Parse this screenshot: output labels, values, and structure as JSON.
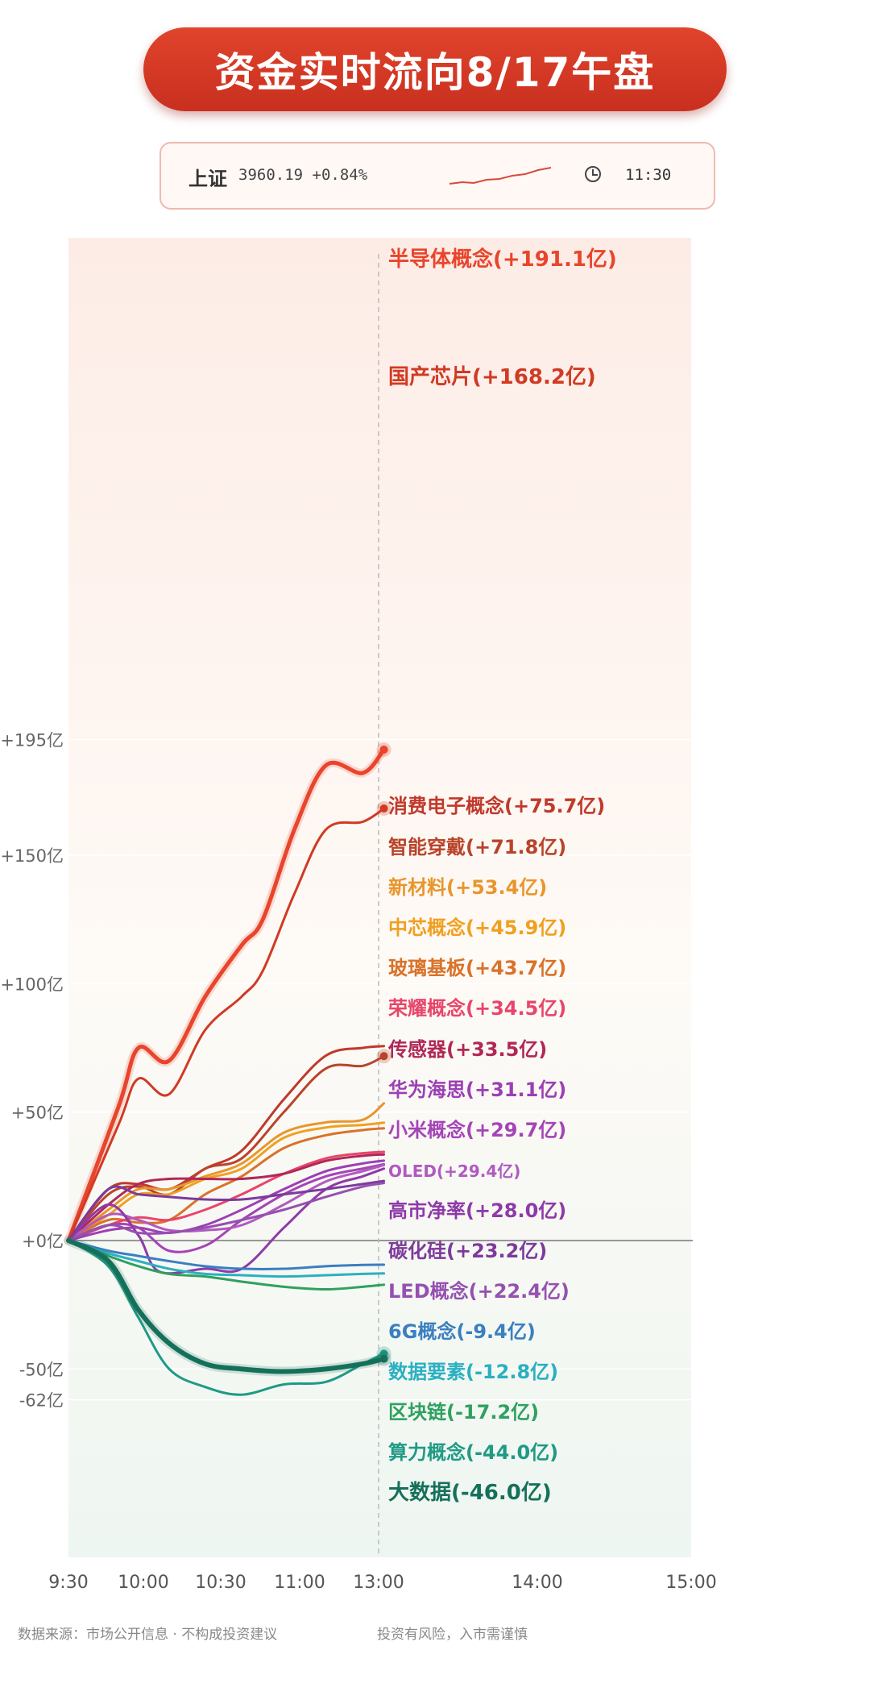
{
  "title": "资金实时流向8/17午盘",
  "index": {
    "name": "上证",
    "value": "3960.19 +0.84%",
    "time": "11:30"
  },
  "footer": {
    "source": "数据来源：市场公开信息 · 不构成投资建议",
    "risk": "投资有风险，入市需谨慎"
  },
  "chart_data": {
    "type": "line",
    "xlabel": "",
    "ylabel": "",
    "x_ticks": [
      "9:30",
      "10:00",
      "10:30",
      "11:00",
      "13:00",
      "14:00",
      "15:00"
    ],
    "y_ticks": [
      {
        "label": "+195亿",
        "v": 195
      },
      {
        "label": "+150亿",
        "v": 150
      },
      {
        "label": "+100亿",
        "v": 100
      },
      {
        "label": "+50亿",
        "v": 50
      },
      {
        "label": "+0亿",
        "v": 0
      },
      {
        "label": "-50亿",
        "v": -50
      },
      {
        "label": "-62亿",
        "v": -62
      }
    ],
    "ylim": [
      -62,
      195
    ],
    "grid": true,
    "series": [
      {
        "name": "半导体概念",
        "value_label": "(+191.1亿)",
        "color": "#e8452c",
        "width": 5,
        "points": [
          [
            0,
            0
          ],
          [
            10,
            52
          ],
          [
            14,
            75
          ],
          [
            20,
            70
          ],
          [
            27,
            95
          ],
          [
            34,
            115
          ],
          [
            38,
            125
          ],
          [
            44,
            160
          ],
          [
            50,
            185
          ],
          [
            57,
            182
          ],
          [
            61,
            191.1
          ]
        ]
      },
      {
        "name": "国产芯片",
        "value_label": "(+168.2亿)",
        "color": "#d13a23",
        "width": 3,
        "points": [
          [
            0,
            0
          ],
          [
            10,
            45
          ],
          [
            14,
            63
          ],
          [
            20,
            57
          ],
          [
            27,
            82
          ],
          [
            34,
            95
          ],
          [
            38,
            105
          ],
          [
            44,
            135
          ],
          [
            50,
            160
          ],
          [
            57,
            163
          ],
          [
            61,
            168.2
          ]
        ]
      },
      {
        "name": "消费电子概念",
        "value_label": "(+75.7亿)",
        "color": "#c0392b",
        "width": 3,
        "points": [
          [
            0,
            0
          ],
          [
            8,
            20
          ],
          [
            14,
            22
          ],
          [
            20,
            20
          ],
          [
            27,
            28
          ],
          [
            34,
            35
          ],
          [
            42,
            55
          ],
          [
            50,
            72
          ],
          [
            57,
            75
          ],
          [
            61,
            75.7
          ]
        ]
      },
      {
        "name": "智能穿戴",
        "value_label": "(+71.8亿)",
        "color": "#b8442a",
        "width": 3,
        "points": [
          [
            0,
            0
          ],
          [
            8,
            18
          ],
          [
            14,
            21
          ],
          [
            20,
            18
          ],
          [
            27,
            28
          ],
          [
            34,
            32
          ],
          [
            42,
            50
          ],
          [
            50,
            67
          ],
          [
            57,
            68
          ],
          [
            61,
            71.8
          ]
        ]
      },
      {
        "name": "新材料",
        "value_label": "(+53.4亿)",
        "color": "#e8962c",
        "width": 3,
        "points": [
          [
            0,
            0
          ],
          [
            8,
            12
          ],
          [
            14,
            20
          ],
          [
            20,
            20
          ],
          [
            27,
            25
          ],
          [
            34,
            30
          ],
          [
            42,
            42
          ],
          [
            50,
            46
          ],
          [
            57,
            47
          ],
          [
            61,
            53.4
          ]
        ]
      },
      {
        "name": "中芯概念",
        "value_label": "(+45.9亿)",
        "color": "#f0a020",
        "width": 3,
        "points": [
          [
            0,
            0
          ],
          [
            8,
            10
          ],
          [
            14,
            18
          ],
          [
            20,
            18
          ],
          [
            27,
            24
          ],
          [
            34,
            28
          ],
          [
            42,
            40
          ],
          [
            50,
            44
          ],
          [
            57,
            45
          ],
          [
            61,
            45.9
          ]
        ]
      },
      {
        "name": "玻璃基板",
        "value_label": "(+43.7亿)",
        "color": "#d9722a",
        "width": 3,
        "points": [
          [
            0,
            0
          ],
          [
            8,
            8
          ],
          [
            14,
            7
          ],
          [
            20,
            8
          ],
          [
            27,
            18
          ],
          [
            34,
            25
          ],
          [
            42,
            36
          ],
          [
            50,
            41
          ],
          [
            57,
            43
          ],
          [
            61,
            43.7
          ]
        ]
      },
      {
        "name": "荣耀概念",
        "value_label": "(+34.5亿)",
        "color": "#e8456a",
        "width": 3,
        "points": [
          [
            0,
            0
          ],
          [
            8,
            6
          ],
          [
            14,
            9
          ],
          [
            20,
            8
          ],
          [
            27,
            12
          ],
          [
            34,
            18
          ],
          [
            42,
            26
          ],
          [
            50,
            32
          ],
          [
            57,
            34
          ],
          [
            61,
            34.5
          ]
        ]
      },
      {
        "name": "传感器",
        "value_label": "(+33.5亿)",
        "color": "#b02858",
        "width": 3,
        "points": [
          [
            0,
            0
          ],
          [
            8,
            14
          ],
          [
            14,
            22
          ],
          [
            20,
            24
          ],
          [
            27,
            24
          ],
          [
            34,
            24
          ],
          [
            42,
            26
          ],
          [
            50,
            31
          ],
          [
            57,
            33
          ],
          [
            61,
            33.5
          ]
        ]
      },
      {
        "name": "华为海思",
        "value_label": "(+31.1亿)",
        "color": "#9c3fb5",
        "width": 3,
        "points": [
          [
            0,
            0
          ],
          [
            8,
            4
          ],
          [
            14,
            5
          ],
          [
            20,
            3
          ],
          [
            27,
            6
          ],
          [
            34,
            12
          ],
          [
            42,
            20
          ],
          [
            50,
            27
          ],
          [
            57,
            30
          ],
          [
            61,
            31.1
          ]
        ]
      },
      {
        "name": "小米概念",
        "value_label": "(+29.7亿)",
        "color": "#a544b8",
        "width": 3,
        "points": [
          [
            0,
            0
          ],
          [
            8,
            6
          ],
          [
            14,
            5
          ],
          [
            20,
            -4
          ],
          [
            27,
            -2
          ],
          [
            34,
            8
          ],
          [
            42,
            18
          ],
          [
            50,
            25
          ],
          [
            57,
            28
          ],
          [
            61,
            29.7
          ]
        ]
      },
      {
        "name": "OLED",
        "value_label": "(+29.4亿)",
        "color": "#b05ac0",
        "width": 3,
        "points": [
          [
            0,
            0
          ],
          [
            8,
            10
          ],
          [
            14,
            8
          ],
          [
            20,
            4
          ],
          [
            27,
            4
          ],
          [
            34,
            6
          ],
          [
            42,
            14
          ],
          [
            50,
            23
          ],
          [
            57,
            27
          ],
          [
            61,
            29.4
          ]
        ]
      },
      {
        "name": "高市净率",
        "value_label": "(+28.0亿)",
        "color": "#8e3aa8",
        "width": 3,
        "points": [
          [
            0,
            0
          ],
          [
            8,
            14
          ],
          [
            14,
            2
          ],
          [
            18,
            -12
          ],
          [
            27,
            -11
          ],
          [
            34,
            -11
          ],
          [
            42,
            5
          ],
          [
            50,
            20
          ],
          [
            57,
            25
          ],
          [
            61,
            28.0
          ]
        ]
      },
      {
        "name": "碳化硅",
        "value_label": "(+23.2亿)",
        "color": "#7d3a9c",
        "width": 3,
        "points": [
          [
            0,
            0
          ],
          [
            8,
            20
          ],
          [
            14,
            18
          ],
          [
            20,
            17
          ],
          [
            27,
            16
          ],
          [
            34,
            16
          ],
          [
            42,
            18
          ],
          [
            50,
            20
          ],
          [
            57,
            22
          ],
          [
            61,
            23.2
          ]
        ]
      },
      {
        "name": "LED概念",
        "value_label": "(+22.4亿)",
        "color": "#9550b0",
        "width": 3,
        "points": [
          [
            0,
            0
          ],
          [
            8,
            6
          ],
          [
            14,
            3
          ],
          [
            20,
            3
          ],
          [
            27,
            5
          ],
          [
            34,
            8
          ],
          [
            42,
            12
          ],
          [
            50,
            17
          ],
          [
            57,
            21
          ],
          [
            61,
            22.4
          ]
        ]
      },
      {
        "name": "6G概念",
        "value_label": "(-9.4亿)",
        "color": "#3a7fc0",
        "width": 3,
        "points": [
          [
            0,
            0
          ],
          [
            8,
            -4
          ],
          [
            14,
            -6
          ],
          [
            20,
            -8
          ],
          [
            27,
            -10
          ],
          [
            34,
            -11
          ],
          [
            42,
            -11
          ],
          [
            50,
            -10
          ],
          [
            57,
            -9.5
          ],
          [
            61,
            -9.4
          ]
        ]
      },
      {
        "name": "数据要素",
        "value_label": "(-12.8亿)",
        "color": "#2ab0c0",
        "width": 3,
        "points": [
          [
            0,
            0
          ],
          [
            8,
            -5
          ],
          [
            14,
            -8
          ],
          [
            20,
            -11
          ],
          [
            27,
            -13
          ],
          [
            34,
            -13.5
          ],
          [
            42,
            -14
          ],
          [
            50,
            -13.5
          ],
          [
            57,
            -13
          ],
          [
            61,
            -12.8
          ]
        ]
      },
      {
        "name": "区块链",
        "value_label": "(-17.2亿)",
        "color": "#2fa060",
        "width": 3,
        "points": [
          [
            0,
            0
          ],
          [
            8,
            -6
          ],
          [
            14,
            -10
          ],
          [
            20,
            -13
          ],
          [
            27,
            -14
          ],
          [
            34,
            -16
          ],
          [
            42,
            -18
          ],
          [
            50,
            -19
          ],
          [
            57,
            -18
          ],
          [
            61,
            -17.2
          ]
        ]
      },
      {
        "name": "算力概念",
        "value_label": "(-44.0亿)",
        "color": "#1f9a84",
        "width": 3,
        "points": [
          [
            0,
            0
          ],
          [
            8,
            -10
          ],
          [
            14,
            -30
          ],
          [
            20,
            -50
          ],
          [
            27,
            -57
          ],
          [
            34,
            -60
          ],
          [
            42,
            -56
          ],
          [
            50,
            -55
          ],
          [
            57,
            -48
          ],
          [
            61,
            -44.0
          ]
        ]
      },
      {
        "name": "大数据",
        "value_label": "(-46.0亿)",
        "color": "#15705a",
        "width": 6,
        "points": [
          [
            0,
            0
          ],
          [
            8,
            -8
          ],
          [
            14,
            -27
          ],
          [
            20,
            -40
          ],
          [
            27,
            -48
          ],
          [
            34,
            -50
          ],
          [
            42,
            -51
          ],
          [
            50,
            -50
          ],
          [
            57,
            -48
          ],
          [
            61,
            -46.0
          ]
        ]
      }
    ]
  }
}
